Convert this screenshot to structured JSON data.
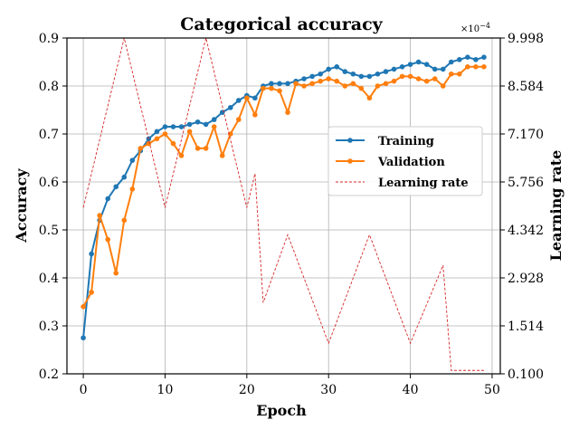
{
  "chart_data": {
    "type": "line",
    "title": "Categorical accuracy",
    "xlabel": "Epoch",
    "ylabel": "Accuracy",
    "y2label": "Learning rate",
    "y2_exponent_label": "×10",
    "y2_exponent_power": "−4",
    "xlim": [
      -2,
      51
    ],
    "ylim": [
      0.2,
      0.9
    ],
    "y2lim": [
      0.1,
      9.998
    ],
    "xticks": [
      0,
      10,
      20,
      30,
      40,
      50
    ],
    "yticks": [
      0.2,
      0.3,
      0.4,
      0.5,
      0.6,
      0.7,
      0.8,
      0.9
    ],
    "y2ticks": [
      0.1,
      1.514,
      2.928,
      4.342,
      5.756,
      7.17,
      8.584,
      9.998
    ],
    "xtick_labels": [
      "0",
      "10",
      "20",
      "30",
      "40",
      "50"
    ],
    "ytick_labels": [
      "0.2",
      "0.3",
      "0.4",
      "0.5",
      "0.6",
      "0.7",
      "0.8",
      "0.9"
    ],
    "y2tick_labels": [
      "0.100",
      "1.514",
      "2.928",
      "4.342",
      "5.756",
      "7.170",
      "8.584",
      "9.998"
    ],
    "grid": true,
    "legend_position": "right",
    "x": [
      0,
      1,
      2,
      3,
      4,
      5,
      6,
      7,
      8,
      9,
      10,
      11,
      12,
      13,
      14,
      15,
      16,
      17,
      18,
      19,
      20,
      21,
      22,
      23,
      24,
      25,
      26,
      27,
      28,
      29,
      30,
      31,
      32,
      33,
      34,
      35,
      36,
      37,
      38,
      39,
      40,
      41,
      42,
      43,
      44,
      45,
      46,
      47,
      48,
      49
    ],
    "series": [
      {
        "name": "Training",
        "axis": "left",
        "style": "line-markers",
        "color": "#1f77b4",
        "values": [
          0.275,
          0.45,
          0.52,
          0.565,
          0.59,
          0.61,
          0.645,
          0.665,
          0.69,
          0.705,
          0.715,
          0.715,
          0.715,
          0.72,
          0.725,
          0.72,
          0.73,
          0.745,
          0.755,
          0.77,
          0.78,
          0.775,
          0.8,
          0.805,
          0.805,
          0.805,
          0.81,
          0.815,
          0.82,
          0.825,
          0.835,
          0.84,
          0.83,
          0.825,
          0.82,
          0.82,
          0.825,
          0.83,
          0.835,
          0.84,
          0.845,
          0.85,
          0.845,
          0.835,
          0.835,
          0.85,
          0.855,
          0.86,
          0.855,
          0.86
        ]
      },
      {
        "name": "Validation",
        "axis": "left",
        "style": "line-markers",
        "color": "#ff7f0e",
        "values": [
          0.34,
          0.37,
          0.53,
          0.48,
          0.41,
          0.52,
          0.585,
          0.67,
          0.68,
          0.69,
          0.7,
          0.68,
          0.655,
          0.705,
          0.67,
          0.67,
          0.715,
          0.655,
          0.7,
          0.73,
          0.775,
          0.74,
          0.795,
          0.795,
          0.79,
          0.745,
          0.805,
          0.8,
          0.805,
          0.81,
          0.815,
          0.81,
          0.8,
          0.805,
          0.795,
          0.775,
          0.8,
          0.805,
          0.81,
          0.82,
          0.82,
          0.815,
          0.81,
          0.815,
          0.8,
          0.825,
          0.825,
          0.84,
          0.84,
          0.84
        ]
      },
      {
        "name": "Learning rate",
        "axis": "right",
        "style": "dashed",
        "color": "#d62728",
        "x": [
          0,
          5,
          10,
          15,
          20,
          21,
          22,
          25,
          30,
          35,
          40,
          44,
          45,
          46,
          47,
          48,
          49
        ],
        "values": [
          5.0,
          10.0,
          5.0,
          10.0,
          5.0,
          6.0,
          2.2,
          4.2,
          1.0,
          4.2,
          1.0,
          3.3,
          0.2,
          0.2,
          0.2,
          0.2,
          0.2
        ]
      }
    ]
  },
  "colors": {
    "training": "#1f77b4",
    "validation": "#ff7f0e",
    "learning_rate": "#d62728",
    "grid": "#b0b0b0"
  }
}
